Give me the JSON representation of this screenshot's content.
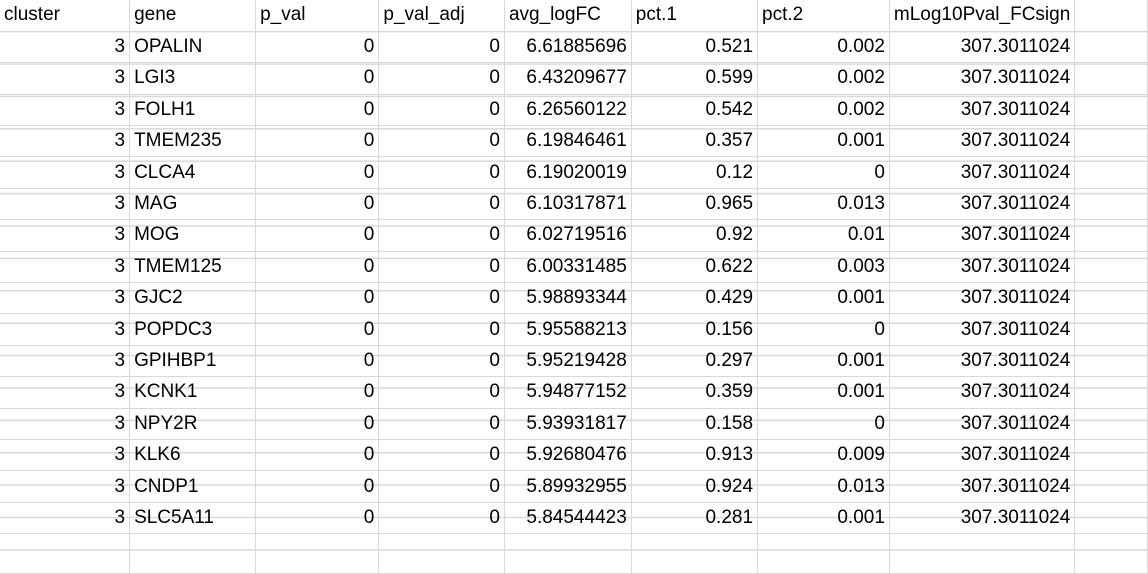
{
  "sheet": {
    "columns": [
      "cluster",
      "gene",
      "p_val",
      "p_val_adj",
      "avg_logFC",
      "pct.1",
      "pct.2",
      "mLog10Pval_FCsign"
    ],
    "rows": [
      [
        "3",
        "OPALIN",
        "0",
        "0",
        "6.61885696",
        "0.521",
        "0.002",
        "307.3011024"
      ],
      [
        "3",
        "LGI3",
        "0",
        "0",
        "6.43209677",
        "0.599",
        "0.002",
        "307.3011024"
      ],
      [
        "3",
        "FOLH1",
        "0",
        "0",
        "6.26560122",
        "0.542",
        "0.002",
        "307.3011024"
      ],
      [
        "3",
        "TMEM235",
        "0",
        "0",
        "6.19846461",
        "0.357",
        "0.001",
        "307.3011024"
      ],
      [
        "3",
        "CLCA4",
        "0",
        "0",
        "6.19020019",
        "0.12",
        "0",
        "307.3011024"
      ],
      [
        "3",
        "MAG",
        "0",
        "0",
        "6.10317871",
        "0.965",
        "0.013",
        "307.3011024"
      ],
      [
        "3",
        "MOG",
        "0",
        "0",
        "6.02719516",
        "0.92",
        "0.01",
        "307.3011024"
      ],
      [
        "3",
        "TMEM125",
        "0",
        "0",
        "6.00331485",
        "0.622",
        "0.003",
        "307.3011024"
      ],
      [
        "3",
        "GJC2",
        "0",
        "0",
        "5.98893344",
        "0.429",
        "0.001",
        "307.3011024"
      ],
      [
        "3",
        "POPDC3",
        "0",
        "0",
        "5.95588213",
        "0.156",
        "0",
        "307.3011024"
      ],
      [
        "3",
        "GPIHBP1",
        "0",
        "0",
        "5.95219428",
        "0.297",
        "0.001",
        "307.3011024"
      ],
      [
        "3",
        "KCNK1",
        "0",
        "0",
        "5.94877152",
        "0.359",
        "0.001",
        "307.3011024"
      ],
      [
        "3",
        "NPY2R",
        "0",
        "0",
        "5.93931817",
        "0.158",
        "0",
        "307.3011024"
      ],
      [
        "3",
        "KLK6",
        "0",
        "0",
        "5.92680476",
        "0.913",
        "0.009",
        "307.3011024"
      ],
      [
        "3",
        "CNDP1",
        "0",
        "0",
        "5.89932955",
        "0.924",
        "0.013",
        "307.3011024"
      ],
      [
        "3",
        "SLC5A11",
        "0",
        "0",
        "5.84544423",
        "0.281",
        "0.001",
        "307.3011024"
      ]
    ]
  }
}
